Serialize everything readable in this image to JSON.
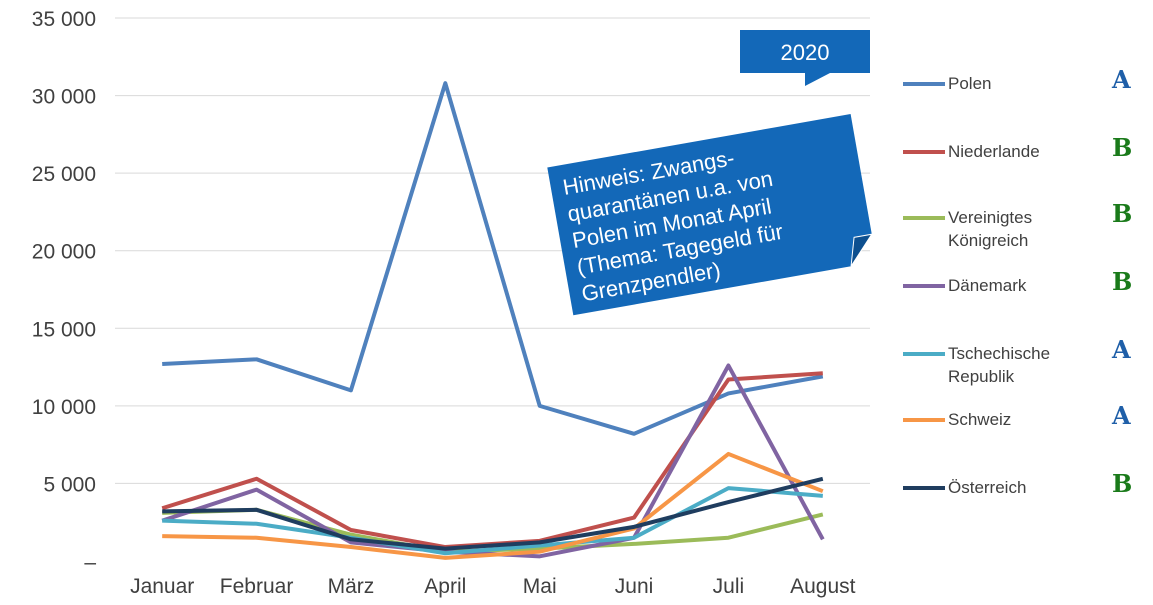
{
  "chart_data": {
    "type": "line",
    "categories": [
      "Januar",
      "Februar",
      "März",
      "April",
      "Mai",
      "Juni",
      "Juli",
      "August"
    ],
    "ylim": [
      0,
      35000
    ],
    "yticks": [
      {
        "value": 0,
        "label": "–"
      },
      {
        "value": 5000,
        "label": "5 000"
      },
      {
        "value": 10000,
        "label": "10 000"
      },
      {
        "value": 15000,
        "label": "15 000"
      },
      {
        "value": 20000,
        "label": "20 000"
      },
      {
        "value": 25000,
        "label": "25 000"
      },
      {
        "value": 30000,
        "label": "30 000"
      },
      {
        "value": 35000,
        "label": "35 000"
      }
    ],
    "grid": true,
    "series": [
      {
        "name": "Polen",
        "color": "#4f81bd",
        "badge": "A",
        "values": [
          12700,
          13000,
          11000,
          30800,
          10000,
          8200,
          10800,
          11900
        ]
      },
      {
        "name": "Niederlande",
        "color": "#c0504d",
        "badge": "B",
        "values": [
          3400,
          5300,
          2000,
          900,
          1300,
          2800,
          11700,
          12100
        ]
      },
      {
        "name": "Vereinigtes Königreich",
        "color": "#9bbb59",
        "badge": "B",
        "values": [
          3100,
          3300,
          1700,
          600,
          800,
          1100,
          1500,
          3000
        ]
      },
      {
        "name": "Dänemark",
        "color": "#8064a2",
        "badge": "B",
        "values": [
          2600,
          4600,
          1200,
          600,
          300,
          1500,
          12600,
          1400
        ]
      },
      {
        "name": "Tschechische Republik",
        "color": "#4bacc6",
        "badge": "A",
        "values": [
          2600,
          2400,
          1500,
          500,
          1000,
          1500,
          4700,
          4200
        ]
      },
      {
        "name": "Schweiz",
        "color": "#f79646",
        "badge": "A",
        "values": [
          1600,
          1500,
          900,
          200,
          600,
          2100,
          6900,
          4500
        ]
      },
      {
        "name": "Österreich",
        "color": "#1f3d5f",
        "badge": "B",
        "values": [
          3200,
          3300,
          1400,
          800,
          1200,
          2200,
          3800,
          5300
        ]
      }
    ],
    "badge_colors": {
      "A": "#1f5fa8",
      "B": "#1a7a1a"
    },
    "year_label": "2020",
    "note": [
      "Hinweis: Zwangs-",
      "quarantänen u.a. von",
      "Polen im Monat April",
      "(Thema: Tagegeld für",
      "Grenzpendler)"
    ]
  }
}
